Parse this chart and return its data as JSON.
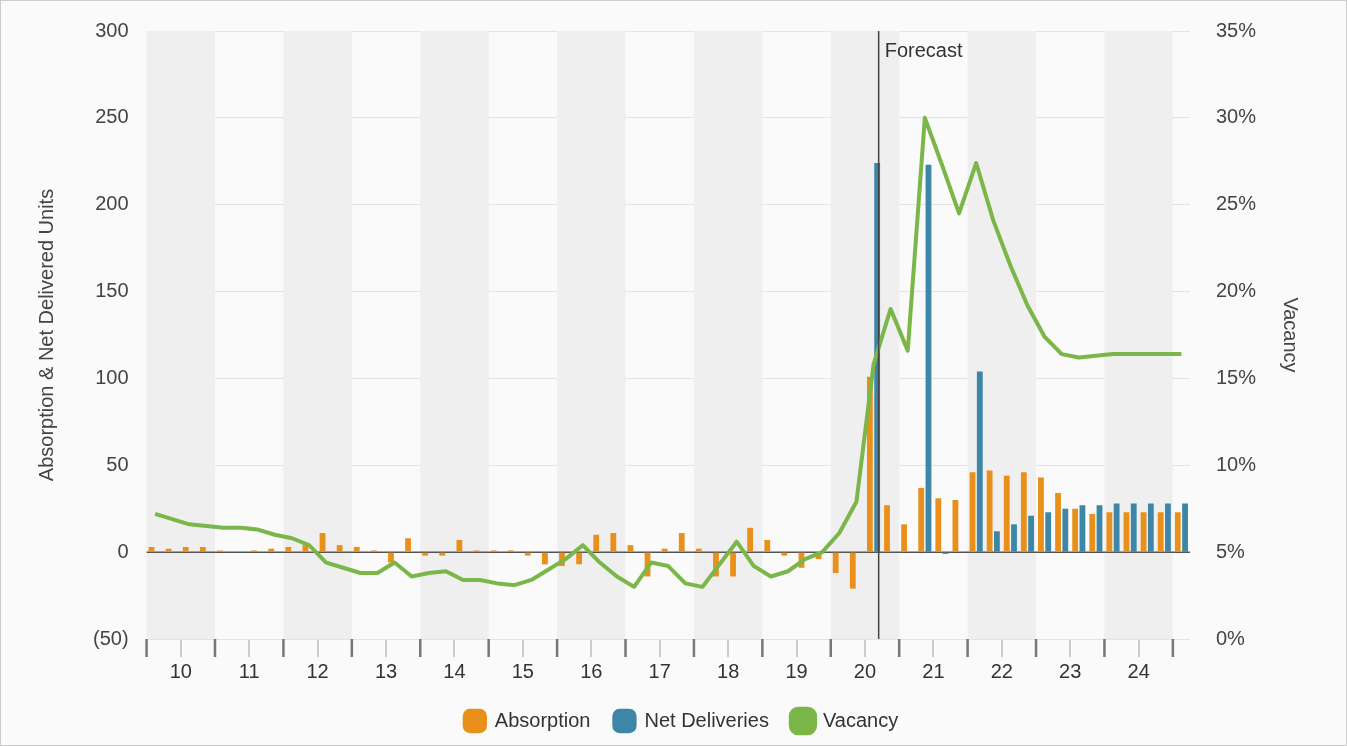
{
  "chart_data": {
    "type": "bar",
    "ylabel": "Absorption & Net Delivered Units",
    "y2label": "Vacancy",
    "x": [
      10.125,
      10.375,
      10.625,
      10.875,
      11.125,
      11.375,
      11.625,
      11.875,
      12.125,
      12.375,
      12.625,
      12.875,
      13.125,
      13.375,
      13.625,
      13.875,
      14.125,
      14.375,
      14.625,
      14.875,
      15.125,
      15.375,
      15.625,
      15.875,
      16.125,
      16.375,
      16.625,
      16.875,
      17.125,
      17.375,
      17.625,
      17.875,
      18.125,
      18.375,
      18.625,
      18.875,
      19.125,
      19.375,
      19.625,
      19.875,
      20.125,
      20.375,
      20.625,
      20.875,
      21.125,
      21.375,
      21.625,
      21.875,
      22.125,
      22.375,
      22.625,
      22.875,
      23.125,
      23.375,
      23.625,
      23.875,
      24.125,
      24.375,
      24.625,
      24.875,
      25.125
    ],
    "series": [
      {
        "name": "Absorption",
        "color": "#e8901a",
        "values": [
          3,
          2,
          3,
          3,
          1,
          0,
          1,
          2,
          3,
          4,
          11,
          4,
          3,
          1,
          -6,
          8,
          -2,
          -2,
          7,
          1,
          1,
          1,
          -2,
          -7,
          -8,
          -7,
          10,
          11,
          4,
          -14,
          2,
          11,
          2,
          -14,
          -14,
          14,
          7,
          -2,
          -9,
          -4,
          -12,
          -21,
          101,
          27,
          16,
          37,
          31,
          30,
          46,
          47,
          44,
          46,
          43,
          34,
          25,
          22,
          23,
          23,
          23,
          23,
          23
        ]
      },
      {
        "name": "Net Deliveries",
        "color": "#3d86a8",
        "values": [
          0,
          0,
          0,
          0,
          0,
          0,
          0,
          0,
          0,
          0,
          0,
          0,
          0,
          0,
          0,
          0,
          0,
          0,
          0,
          0,
          0,
          0,
          0,
          0,
          0,
          0,
          0,
          0,
          0,
          0,
          0,
          0,
          0,
          0,
          0,
          0,
          0,
          0,
          0,
          0,
          0,
          0,
          224,
          0,
          0,
          223,
          -1,
          0,
          104,
          12,
          16,
          21,
          23,
          25,
          27,
          27,
          28,
          28,
          28,
          28,
          28
        ]
      },
      {
        "name": "Vacancy",
        "type": "line",
        "axis": "y2",
        "color": "#7ab648",
        "values": [
          7.2,
          6.9,
          6.6,
          6.5,
          6.4,
          6.4,
          6.3,
          6.0,
          5.8,
          5.4,
          4.4,
          4.1,
          3.8,
          3.8,
          4.4,
          3.6,
          3.8,
          3.9,
          3.4,
          3.4,
          3.2,
          3.1,
          3.4,
          4.0,
          4.6,
          5.4,
          4.4,
          3.6,
          3.0,
          4.4,
          4.2,
          3.2,
          3.0,
          4.3,
          5.6,
          4.2,
          3.6,
          3.9,
          4.6,
          5.0,
          6.1,
          7.9,
          15.8,
          19.0,
          16.6,
          30.0,
          27.3,
          24.5,
          27.4,
          24.1,
          21.5,
          19.2,
          17.4,
          16.4,
          16.2,
          16.3,
          16.4,
          16.4,
          16.4,
          16.4,
          16.4
        ]
      }
    ],
    "xlim": [
      10,
      25.25
    ],
    "xticks": [
      {
        "value": 10.5,
        "label": "10"
      },
      {
        "value": 11.5,
        "label": "11"
      },
      {
        "value": 12.5,
        "label": "12"
      },
      {
        "value": 13.5,
        "label": "13"
      },
      {
        "value": 14.5,
        "label": "14"
      },
      {
        "value": 15.5,
        "label": "15"
      },
      {
        "value": 16.5,
        "label": "16"
      },
      {
        "value": 17.5,
        "label": "17"
      },
      {
        "value": 18.5,
        "label": "18"
      },
      {
        "value": 19.5,
        "label": "19"
      },
      {
        "value": 20.5,
        "label": "20"
      },
      {
        "value": 21.5,
        "label": "21"
      },
      {
        "value": 22.5,
        "label": "22"
      },
      {
        "value": 23.5,
        "label": "23"
      },
      {
        "value": 24.5,
        "label": "24"
      }
    ],
    "ylim": [
      -50,
      300
    ],
    "yticks": [
      {
        "value": -50,
        "label": "(50)"
      },
      0,
      50,
      100,
      150,
      200,
      250,
      300
    ],
    "y2lim": [
      0,
      35
    ],
    "y2ticks": [
      {
        "value": 0,
        "label": "0%"
      },
      {
        "value": 5,
        "label": "5%"
      },
      {
        "value": 10,
        "label": "10%"
      },
      {
        "value": 15,
        "label": "15%"
      },
      {
        "value": 20,
        "label": "20%"
      },
      {
        "value": 25,
        "label": "25%"
      },
      {
        "value": 30,
        "label": "30%"
      },
      {
        "value": 35,
        "label": "35%"
      }
    ],
    "ref_lines": [
      {
        "axis": "x",
        "value": 20.7,
        "label": "Forecast",
        "color": "#444444"
      }
    ],
    "bands": [
      {
        "axis": "x",
        "from": 10,
        "to": 11,
        "color": "#efefef"
      },
      {
        "axis": "x",
        "from": 12,
        "to": 13,
        "color": "#efefef"
      },
      {
        "axis": "x",
        "from": 14,
        "to": 15,
        "color": "#efefef"
      },
      {
        "axis": "x",
        "from": 16,
        "to": 17,
        "color": "#efefef"
      },
      {
        "axis": "x",
        "from": 18,
        "to": 19,
        "color": "#efefef"
      },
      {
        "axis": "x",
        "from": 20,
        "to": 21,
        "color": "#efefef"
      },
      {
        "axis": "x",
        "from": 22,
        "to": 23,
        "color": "#efefef"
      },
      {
        "axis": "x",
        "from": 24,
        "to": 25,
        "color": "#efefef"
      }
    ],
    "grid": "y",
    "legend": "bottom",
    "marker": "none",
    "line_style": "solid"
  }
}
